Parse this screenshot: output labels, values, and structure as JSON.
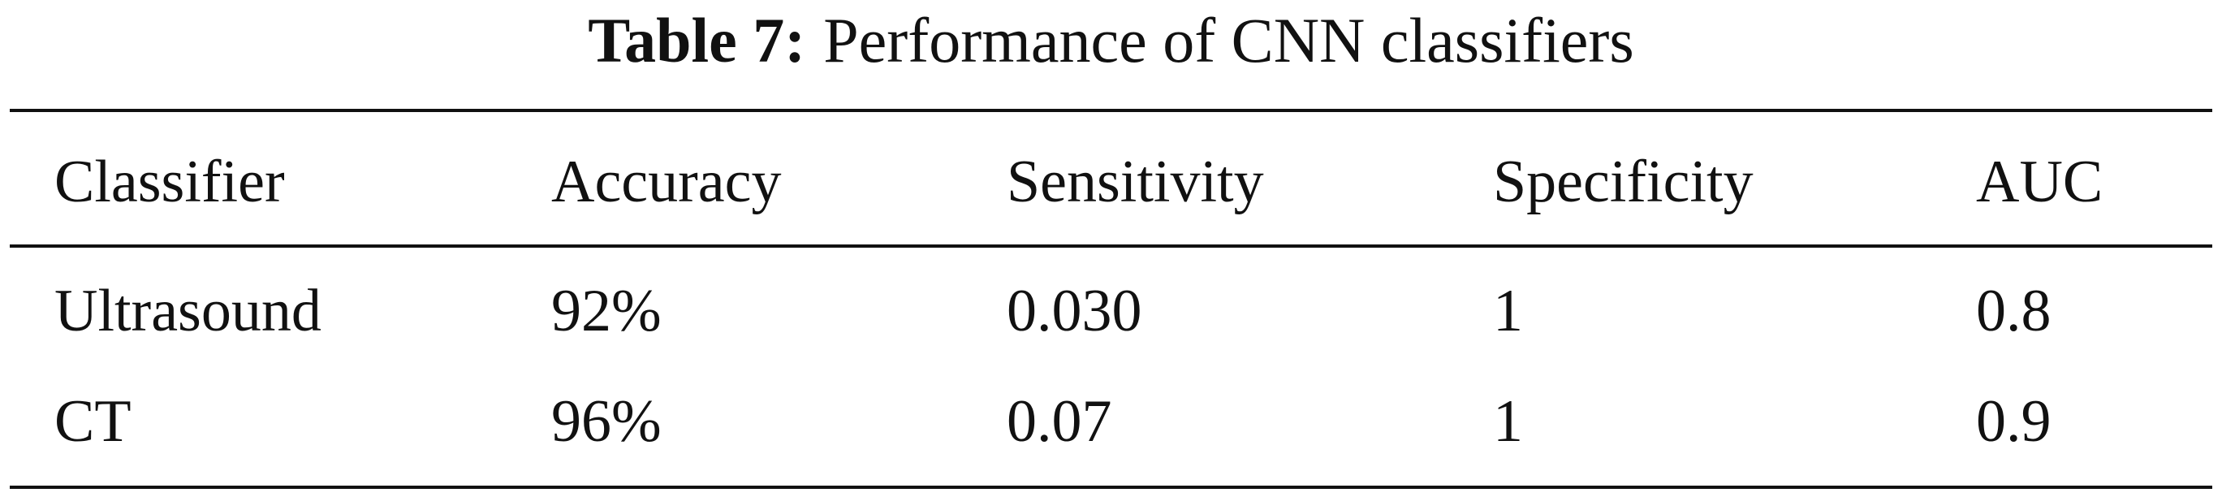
{
  "caption": {
    "label": "Table 7:",
    "text": "Performance of CNN classifiers"
  },
  "table": {
    "header": [
      "Classifier",
      "Accuracy",
      "Sensitivity",
      "Specificity",
      "AUC"
    ],
    "rows": [
      [
        "Ultrasound",
        "92%",
        "0.030",
        "1",
        "0.8"
      ],
      [
        "CT",
        "96%",
        "0.07",
        "1",
        "0.9"
      ]
    ]
  }
}
